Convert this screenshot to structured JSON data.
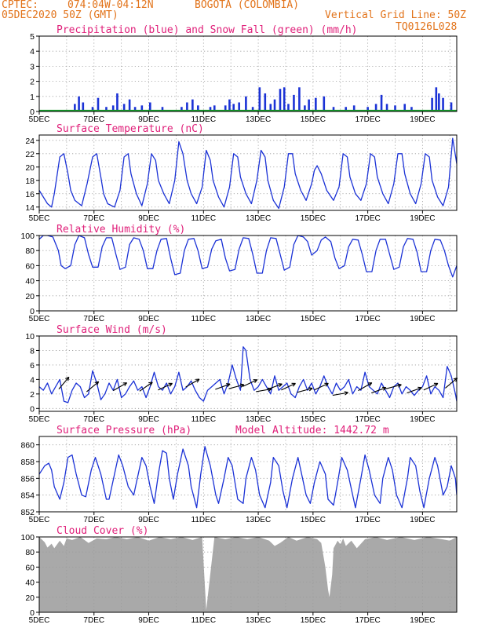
{
  "header": {
    "source": "CPTEC:",
    "coords": "074:04W-04:12N",
    "location": "BOGOTA (COLOMBIA)",
    "init": "05DEC2020 50Z (GMT)",
    "grid_note": "Vertical Grid Line: 50Z",
    "model_code": "TQ0126L028"
  },
  "colors": {
    "header": "#e2731a",
    "panel_title": "#e0207a",
    "series_line": "#1b32d6",
    "snow": "#16a02c",
    "cloud": "#a9a9a9"
  },
  "x_axis": {
    "ticks": [
      "5DEC",
      "7DEC",
      "9DEC",
      "11DEC",
      "13DEC",
      "15DEC",
      "17DEC",
      "19DEC"
    ],
    "ticks_pos_days": [
      0,
      2,
      4,
      6,
      8,
      10,
      12,
      14
    ],
    "range_days": [
      0,
      15.25
    ],
    "hidden_year_label": "2020"
  },
  "chart_data": [
    {
      "id": "precip",
      "type": "bar",
      "title": "Precipitation (blue) and Snow Fall (green) (mm/h)",
      "ylim": [
        0,
        5
      ],
      "yticks": [
        0,
        1,
        2,
        3,
        4,
        5
      ],
      "grid": true,
      "x": [
        1.3,
        1.45,
        1.6,
        1.95,
        2.15,
        2.45,
        2.7,
        2.85,
        3.1,
        3.3,
        3.5,
        3.75,
        4.05,
        4.5,
        5.2,
        5.4,
        5.6,
        5.8,
        6.25,
        6.4,
        6.8,
        6.95,
        7.1,
        7.3,
        7.55,
        7.8,
        8.05,
        8.25,
        8.45,
        8.6,
        8.8,
        8.95,
        9.1,
        9.3,
        9.5,
        9.7,
        9.85,
        10.1,
        10.4,
        10.75,
        11.2,
        11.5,
        12.0,
        12.3,
        12.5,
        12.7,
        13.0,
        13.35,
        13.6,
        14.35,
        14.5,
        14.6,
        14.75,
        15.05
      ],
      "values": [
        0.5,
        1.0,
        0.6,
        0.3,
        0.9,
        0.3,
        0.4,
        1.2,
        0.5,
        0.8,
        0.3,
        0.4,
        0.6,
        0.3,
        0.3,
        0.6,
        0.8,
        0.4,
        0.3,
        0.4,
        0.4,
        0.8,
        0.5,
        0.6,
        1.0,
        0.3,
        1.6,
        1.2,
        0.5,
        0.8,
        1.5,
        1.6,
        0.5,
        1.1,
        1.6,
        0.4,
        0.8,
        0.9,
        1.0,
        0.3,
        0.3,
        0.4,
        0.3,
        0.5,
        1.1,
        0.5,
        0.4,
        0.5,
        0.3,
        0.9,
        1.6,
        1.2,
        0.9,
        0.6
      ],
      "snow": 0
    },
    {
      "id": "temp",
      "type": "line",
      "title": "Surface Temperature (nC)",
      "ylim": [
        13.5,
        24.8
      ],
      "yticks": [
        14,
        16,
        18,
        20,
        22,
        24
      ],
      "grid": true,
      "x": [
        0.0,
        0.15,
        0.3,
        0.45,
        0.55,
        0.75,
        0.9,
        1.05,
        1.15,
        1.3,
        1.55,
        1.75,
        1.95,
        2.1,
        2.25,
        2.35,
        2.5,
        2.75,
        2.95,
        3.1,
        3.25,
        3.35,
        3.55,
        3.75,
        3.95,
        4.1,
        4.25,
        4.35,
        4.55,
        4.75,
        4.95,
        5.1,
        5.25,
        5.4,
        5.55,
        5.75,
        5.95,
        6.1,
        6.25,
        6.35,
        6.55,
        6.75,
        6.95,
        7.1,
        7.25,
        7.35,
        7.55,
        7.75,
        7.95,
        8.1,
        8.25,
        8.35,
        8.55,
        8.75,
        8.95,
        9.1,
        9.25,
        9.35,
        9.55,
        9.75,
        9.95,
        10.05,
        10.15,
        10.3,
        10.5,
        10.75,
        10.95,
        11.1,
        11.25,
        11.35,
        11.55,
        11.75,
        11.95,
        12.1,
        12.25,
        12.35,
        12.55,
        12.75,
        12.95,
        13.1,
        13.25,
        13.35,
        13.55,
        13.75,
        13.95,
        14.1,
        14.25,
        14.35,
        14.55,
        14.75,
        14.95,
        15.1,
        15.25
      ],
      "values": [
        16.5,
        15.5,
        14.5,
        14.0,
        16.0,
        21.5,
        22.0,
        19.0,
        16.5,
        15.0,
        14.2,
        17.5,
        21.5,
        22.0,
        18.5,
        16.0,
        14.5,
        14.0,
        16.5,
        21.5,
        22.0,
        19.0,
        16.0,
        14.2,
        17.5,
        22.0,
        21.0,
        18.0,
        16.0,
        14.5,
        18.0,
        23.8,
        22.0,
        18.0,
        16.0,
        14.5,
        17.0,
        22.5,
        21.0,
        18.0,
        15.5,
        14.0,
        17.0,
        22.0,
        21.5,
        18.5,
        16.0,
        14.5,
        18.0,
        22.5,
        21.5,
        18.0,
        15.0,
        13.8,
        17.0,
        22.0,
        22.0,
        19.0,
        16.5,
        15.0,
        17.5,
        19.5,
        20.2,
        19.0,
        16.5,
        15.0,
        17.0,
        22.0,
        21.5,
        18.5,
        16.0,
        15.0,
        17.5,
        22.0,
        21.5,
        18.5,
        16.0,
        14.5,
        17.5,
        22.0,
        22.0,
        19.0,
        16.0,
        14.5,
        17.5,
        22.0,
        21.5,
        18.0,
        15.5,
        14.2,
        17.0,
        24.3,
        20.5
      ]
    },
    {
      "id": "rh",
      "type": "line",
      "title": "Relative Humidity (%)",
      "ylim": [
        0,
        100
      ],
      "yticks": [
        0,
        20,
        40,
        60,
        80,
        100
      ],
      "grid": true,
      "x": [
        0.0,
        0.15,
        0.3,
        0.5,
        0.7,
        0.8,
        0.95,
        1.15,
        1.3,
        1.45,
        1.65,
        1.8,
        1.95,
        2.15,
        2.3,
        2.45,
        2.65,
        2.8,
        2.95,
        3.15,
        3.3,
        3.45,
        3.65,
        3.8,
        3.95,
        4.15,
        4.3,
        4.45,
        4.65,
        4.8,
        4.95,
        5.15,
        5.3,
        5.45,
        5.65,
        5.8,
        5.95,
        6.15,
        6.3,
        6.45,
        6.65,
        6.8,
        6.95,
        7.15,
        7.3,
        7.45,
        7.65,
        7.8,
        7.95,
        8.15,
        8.3,
        8.45,
        8.65,
        8.8,
        8.95,
        9.15,
        9.3,
        9.45,
        9.65,
        9.8,
        9.95,
        10.15,
        10.3,
        10.45,
        10.65,
        10.8,
        10.95,
        11.15,
        11.3,
        11.45,
        11.65,
        11.8,
        11.95,
        12.15,
        12.3,
        12.45,
        12.65,
        12.8,
        12.95,
        13.15,
        13.3,
        13.45,
        13.65,
        13.8,
        13.95,
        14.15,
        14.3,
        14.45,
        14.65,
        14.8,
        14.95,
        15.1,
        15.25
      ],
      "values": [
        95.0,
        100.0,
        100.0,
        98.0,
        80.0,
        60.0,
        56.0,
        60.0,
        88.0,
        100.0,
        97.0,
        75.0,
        58.0,
        58.0,
        85.0,
        97.0,
        97.0,
        75.0,
        55.0,
        58.0,
        88.0,
        97.0,
        95.0,
        80.0,
        56.0,
        56.0,
        80.0,
        95.0,
        96.0,
        70.0,
        48.0,
        50.0,
        80.0,
        95.0,
        96.0,
        80.0,
        56.0,
        58.0,
        82.0,
        93.0,
        95.0,
        70.0,
        53.0,
        55.0,
        82.0,
        97.0,
        96.0,
        75.0,
        50.0,
        50.0,
        80.0,
        97.0,
        96.0,
        75.0,
        54.0,
        58.0,
        88.0,
        100.0,
        98.0,
        92.0,
        74.0,
        80.0,
        94.0,
        98.0,
        92.0,
        70.0,
        56.0,
        60.0,
        85.0,
        95.0,
        94.0,
        75.0,
        52.0,
        52.0,
        80.0,
        95.0,
        95.0,
        75.0,
        55.0,
        58.0,
        85.0,
        96.0,
        95.0,
        78.0,
        52.0,
        52.0,
        80.0,
        95.0,
        94.0,
        80.0,
        60.0,
        45.0,
        60.0
      ]
    },
    {
      "id": "wind",
      "type": "line",
      "title": "Surface Wind (m/s)",
      "ylim": [
        -0.4,
        10
      ],
      "yticks": [
        0,
        2,
        4,
        6,
        8,
        10
      ],
      "grid": true,
      "x": [
        0.0,
        0.15,
        0.3,
        0.45,
        0.6,
        0.75,
        0.9,
        1.05,
        1.2,
        1.35,
        1.5,
        1.65,
        1.8,
        1.95,
        2.1,
        2.25,
        2.4,
        2.55,
        2.7,
        2.85,
        3.0,
        3.15,
        3.3,
        3.45,
        3.6,
        3.75,
        3.9,
        4.05,
        4.2,
        4.35,
        4.5,
        4.65,
        4.8,
        4.95,
        5.1,
        5.25,
        5.4,
        5.55,
        5.7,
        5.85,
        6.0,
        6.15,
        6.3,
        6.45,
        6.6,
        6.75,
        6.9,
        7.05,
        7.2,
        7.35,
        7.45,
        7.55,
        7.7,
        7.85,
        8.0,
        8.15,
        8.3,
        8.45,
        8.6,
        8.75,
        8.9,
        9.05,
        9.2,
        9.35,
        9.5,
        9.65,
        9.8,
        9.95,
        10.1,
        10.25,
        10.4,
        10.55,
        10.7,
        10.85,
        11.0,
        11.15,
        11.3,
        11.45,
        11.6,
        11.75,
        11.9,
        12.05,
        12.2,
        12.35,
        12.5,
        12.65,
        12.8,
        12.95,
        13.1,
        13.25,
        13.4,
        13.55,
        13.7,
        13.85,
        14.0,
        14.15,
        14.3,
        14.45,
        14.6,
        14.75,
        14.9,
        15.05,
        15.2,
        15.25
      ],
      "values": [
        3.0,
        2.5,
        3.5,
        2.0,
        3.0,
        4.0,
        1.0,
        0.8,
        2.5,
        3.5,
        3.0,
        1.5,
        2.0,
        5.2,
        3.5,
        1.2,
        2.0,
        3.5,
        2.5,
        4.0,
        1.5,
        2.0,
        3.0,
        3.8,
        2.5,
        3.0,
        1.5,
        3.0,
        5.0,
        3.0,
        2.5,
        3.5,
        2.0,
        3.0,
        5.0,
        2.5,
        3.0,
        3.8,
        2.5,
        1.5,
        1.0,
        2.5,
        3.0,
        3.5,
        4.0,
        2.0,
        3.5,
        6.0,
        4.0,
        2.5,
        8.5,
        8.0,
        4.0,
        2.5,
        3.0,
        4.0,
        3.0,
        2.0,
        4.5,
        2.5,
        3.0,
        3.5,
        2.0,
        1.5,
        3.0,
        4.0,
        2.5,
        3.5,
        2.0,
        3.0,
        4.5,
        3.0,
        2.0,
        3.5,
        2.5,
        3.0,
        4.0,
        2.0,
        3.0,
        2.5,
        5.0,
        3.0,
        2.5,
        2.0,
        3.5,
        2.5,
        1.5,
        3.0,
        3.5,
        2.0,
        3.0,
        2.5,
        1.8,
        2.5,
        3.0,
        4.5,
        2.0,
        3.0,
        2.5,
        1.5,
        5.8,
        4.5,
        2.0,
        1.0
      ],
      "barb_x": [
        0.9,
        1.95,
        2.95,
        3.9,
        4.6,
        5.6,
        6.7,
        7.2,
        7.7,
        8.2,
        8.6,
        9.1,
        9.7,
        10.3,
        11.0,
        11.9,
        12.4,
        12.95,
        13.7,
        14.3,
        15.05
      ],
      "barb_angle_deg": [
        -50,
        -40,
        -30,
        -35,
        -25,
        -30,
        -20,
        -15,
        -25,
        -10,
        -20,
        -25,
        -15,
        -25,
        -10,
        -30,
        -20,
        -15,
        -20,
        -25,
        -40
      ],
      "barb_speed": [
        3.5,
        3.0,
        3.0,
        3.0,
        3.0,
        3.5,
        3.0,
        3.0,
        3.5,
        2.5,
        3.0,
        3.0,
        2.5,
        3.0,
        2.0,
        3.0,
        2.5,
        3.0,
        2.5,
        3.0,
        3.5
      ]
    },
    {
      "id": "pressure",
      "type": "line",
      "title": "Surface Pressure (hPa)",
      "extra_label": "Model Altitude: 1442.72 m",
      "ylim": [
        852,
        861
      ],
      "yticks": [
        852,
        854,
        856,
        858,
        860
      ],
      "grid": true,
      "x": [
        0.0,
        0.2,
        0.35,
        0.45,
        0.55,
        0.75,
        0.9,
        1.05,
        1.2,
        1.35,
        1.55,
        1.7,
        1.9,
        2.05,
        2.25,
        2.45,
        2.55,
        2.75,
        2.9,
        3.05,
        3.25,
        3.45,
        3.55,
        3.75,
        3.9,
        4.05,
        4.2,
        4.35,
        4.5,
        4.65,
        4.75,
        4.9,
        5.05,
        5.25,
        5.45,
        5.55,
        5.75,
        5.9,
        6.05,
        6.25,
        6.45,
        6.55,
        6.75,
        6.9,
        7.05,
        7.25,
        7.45,
        7.55,
        7.75,
        7.9,
        8.05,
        8.25,
        8.45,
        8.55,
        8.75,
        8.9,
        9.05,
        9.25,
        9.45,
        9.55,
        9.75,
        9.9,
        10.05,
        10.25,
        10.45,
        10.55,
        10.75,
        10.9,
        11.05,
        11.25,
        11.45,
        11.55,
        11.75,
        11.9,
        12.05,
        12.25,
        12.45,
        12.55,
        12.75,
        12.9,
        13.05,
        13.25,
        13.45,
        13.55,
        13.75,
        13.9,
        14.05,
        14.25,
        14.45,
        14.55,
        14.75,
        14.9,
        15.05,
        15.2,
        15.25
      ],
      "values": [
        856.5,
        857.5,
        857.8,
        857.0,
        855.0,
        853.5,
        855.5,
        858.5,
        858.8,
        856.5,
        854.0,
        853.8,
        857.0,
        858.5,
        856.5,
        853.5,
        853.5,
        856.5,
        858.8,
        857.5,
        855.0,
        854.0,
        855.5,
        858.5,
        857.5,
        855.0,
        853.0,
        856.5,
        859.3,
        859.0,
        856.0,
        853.5,
        856.5,
        859.5,
        857.5,
        855.0,
        852.5,
        856.5,
        859.8,
        857.5,
        854.0,
        853.0,
        856.0,
        858.5,
        857.5,
        853.5,
        853.0,
        856.0,
        858.5,
        857.0,
        854.0,
        852.5,
        855.5,
        858.5,
        857.5,
        854.5,
        852.5,
        856.0,
        858.5,
        857.0,
        854.0,
        853.0,
        855.5,
        858.0,
        856.5,
        853.5,
        852.8,
        855.5,
        858.5,
        857.0,
        854.0,
        852.5,
        856.0,
        858.8,
        857.0,
        854.0,
        853.0,
        856.0,
        858.5,
        857.0,
        854.0,
        852.5,
        856.0,
        858.5,
        857.5,
        854.5,
        852.5,
        856.0,
        858.5,
        857.5,
        854.0,
        855.0,
        857.5,
        856.0,
        854.0
      ]
    },
    {
      "id": "cloud",
      "type": "area",
      "title": "Cloud Cover (%)",
      "ylim": [
        0,
        100
      ],
      "yticks": [
        0,
        20,
        40,
        60,
        80,
        100
      ],
      "grid": true,
      "x": [
        0.0,
        0.2,
        0.3,
        0.45,
        0.55,
        0.75,
        0.9,
        1.0,
        1.2,
        1.5,
        1.8,
        2.1,
        2.45,
        2.8,
        3.2,
        3.6,
        4.0,
        4.4,
        4.8,
        5.2,
        5.6,
        5.95,
        6.1,
        6.4,
        6.8,
        7.2,
        7.6,
        8.0,
        8.4,
        8.6,
        8.8,
        9.1,
        9.4,
        9.8,
        10.15,
        10.3,
        10.45,
        10.55,
        10.6,
        10.7,
        10.75,
        10.9,
        11.0,
        11.1,
        11.2,
        11.4,
        11.6,
        11.9,
        12.3,
        12.7,
        13.2,
        13.7,
        14.2,
        14.7,
        15.0,
        15.25
      ],
      "values": [
        100.0,
        93.0,
        86.0,
        91.0,
        85.0,
        95.0,
        88.0,
        98.0,
        96.0,
        100.0,
        92.0,
        98.0,
        97.0,
        100.0,
        97.0,
        100.0,
        95.0,
        100.0,
        97.0,
        100.0,
        96.0,
        100.0,
        3.0,
        100.0,
        97.0,
        100.0,
        97.0,
        100.0,
        95.0,
        88.0,
        92.0,
        100.0,
        95.0,
        100.0,
        97.0,
        92.0,
        60.0,
        30.0,
        20.0,
        50.0,
        85.0,
        95.0,
        90.0,
        98.0,
        88.0,
        95.0,
        85.0,
        97.0,
        100.0,
        96.0,
        100.0,
        96.0,
        100.0,
        97.0,
        95.0,
        100.0
      ]
    }
  ]
}
